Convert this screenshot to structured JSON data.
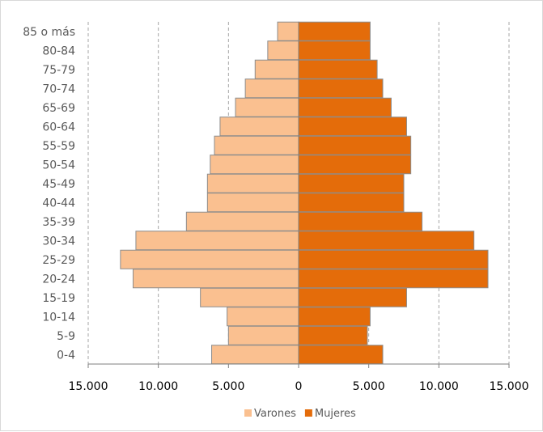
{
  "chart_data": {
    "type": "bar",
    "orientation": "horizontal-population-pyramid",
    "categories": [
      "0-4",
      "5-9",
      "10-14",
      "15-19",
      "20-24",
      "25-29",
      "30-34",
      "35-39",
      "40-44",
      "45-49",
      "50-54",
      "55-59",
      "60-64",
      "65-69",
      "70-74",
      "75-79",
      "80-84",
      "85 o más"
    ],
    "series": [
      {
        "name": "Varones",
        "color": "#fac090",
        "side": "left",
        "values": [
          6200,
          5000,
          5100,
          7000,
          11800,
          12700,
          11600,
          8000,
          6500,
          6500,
          6300,
          6000,
          5600,
          4500,
          3800,
          3100,
          2200,
          1500
        ]
      },
      {
        "name": "Mujeres",
        "color": "#e46c0a",
        "side": "right",
        "values": [
          6000,
          4900,
          5100,
          7700,
          13500,
          13500,
          12500,
          8800,
          7500,
          7500,
          8000,
          8000,
          7700,
          6600,
          6000,
          5600,
          5100,
          5100
        ]
      }
    ],
    "xlim": [
      -15000,
      15000
    ],
    "x_ticks": [
      -15000,
      -10000,
      -5000,
      0,
      5000,
      10000,
      15000
    ],
    "x_tick_labels": [
      "15.000",
      "10.000",
      "5.000",
      "0",
      "5.000",
      "10.000",
      "15.000"
    ],
    "gridlines": "vertical-dashed",
    "legend": "bottom-center"
  }
}
